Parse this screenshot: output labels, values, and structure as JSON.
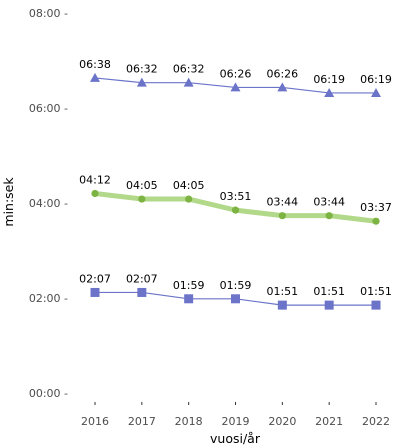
{
  "chart_data": {
    "type": "line",
    "x": [
      "2016",
      "2017",
      "2018",
      "2019",
      "2020",
      "2021",
      "2022"
    ],
    "xlabel": "vuosi/år",
    "ylabel": "min:sek",
    "ylim_seconds": [
      0,
      480
    ],
    "y_ticks": [
      {
        "seconds": 0,
        "label": "00:00 -"
      },
      {
        "seconds": 120,
        "label": "02:00 -"
      },
      {
        "seconds": 240,
        "label": "04:00 -"
      },
      {
        "seconds": 360,
        "label": "06:00 -"
      },
      {
        "seconds": 480,
        "label": "08:00 -"
      }
    ],
    "grid": false,
    "series": [
      {
        "marker": "triangle",
        "color": "#6b74c9",
        "line_color": "#6b74c9",
        "values_seconds": [
          398,
          392,
          392,
          386,
          386,
          379,
          379
        ],
        "labels": [
          "06:38",
          "06:32",
          "06:32",
          "06:26",
          "06:26",
          "06:19",
          "06:19"
        ]
      },
      {
        "marker": "circle",
        "color": "#7cb342",
        "line_color": "#b2d98a",
        "values_seconds": [
          252,
          245,
          245,
          231,
          224,
          224,
          217
        ],
        "labels": [
          "04:12",
          "04:05",
          "04:05",
          "03:51",
          "03:44",
          "03:44",
          "03:37"
        ]
      },
      {
        "marker": "square",
        "color": "#6b74c9",
        "line_color": "#6b74c9",
        "values_seconds": [
          127,
          127,
          119,
          119,
          111,
          111,
          111
        ],
        "labels": [
          "02:07",
          "02:07",
          "01:59",
          "01:59",
          "01:51",
          "01:51",
          "01:51"
        ]
      }
    ]
  }
}
